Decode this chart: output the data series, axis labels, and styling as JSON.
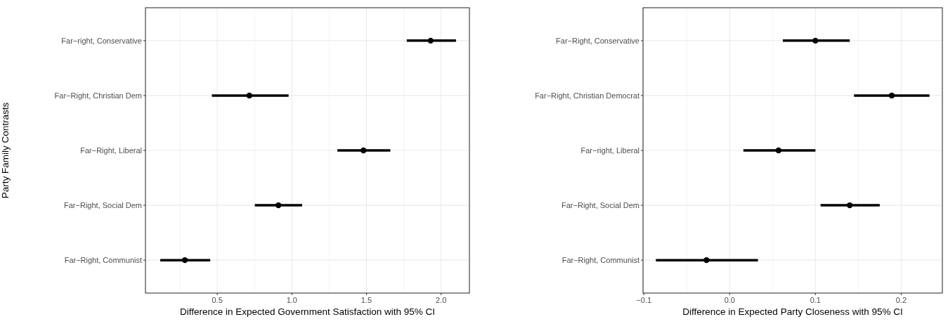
{
  "chart_data": [
    {
      "type": "scatter",
      "orientation": "horizontal",
      "ylabel": "Party Family Contrasts",
      "xlabel": "Difference in Expected Government Satisfaction with 95% CI",
      "categories": [
        "Far−right, Conservative",
        "Far−Right, Christian Dem",
        "Far−Right, Liberal",
        "Far−Right, Social Dem",
        "Far−Right, Communist"
      ],
      "color": "#000000",
      "values": [
        1.93,
        0.715,
        1.48,
        0.91,
        0.283
      ],
      "errors": [
        [
          1.77,
          2.1
        ],
        [
          0.464,
          0.978
        ],
        [
          1.305,
          1.66
        ],
        [
          0.752,
          1.069
        ],
        [
          0.118,
          0.453
        ]
      ],
      "xlim": [
        0.019,
        2.19
      ],
      "xticks": [
        {
          "value": 0.5,
          "label": "0.5"
        },
        {
          "value": 1,
          "label": "1.0"
        },
        {
          "value": 1.5,
          "label": "1.5"
        },
        {
          "value": 2,
          "label": "2.0"
        }
      ],
      "grid": true,
      "marker": "circle"
    },
    {
      "type": "scatter",
      "orientation": "horizontal",
      "xlabel": "Difference in Expected Party Closeness with 95% CI",
      "categories": [
        "Far−Right, Conservative",
        "Far−Right, Christian Democrat",
        "Far−right, Liberal",
        "Far−Right, Social Dem",
        "Far−Right, Communist"
      ],
      "color": "#000000",
      "values": [
        0.1,
        0.189,
        0.057,
        0.14,
        -0.027
      ],
      "errors": [
        [
          0.062,
          0.14
        ],
        [
          0.145,
          0.233
        ],
        [
          0.016,
          0.1
        ],
        [
          0.106,
          0.175
        ],
        [
          -0.086,
          0.033
        ]
      ],
      "xlim": [
        -0.101,
        0.248
      ],
      "xticks": [
        {
          "value": -0.1,
          "label": "−0.1"
        },
        {
          "value": 0,
          "label": "0.0"
        },
        {
          "value": 0.1,
          "label": "0.1"
        },
        {
          "value": 0.2,
          "label": "0.2"
        }
      ],
      "grid": true,
      "marker": "circle"
    }
  ]
}
